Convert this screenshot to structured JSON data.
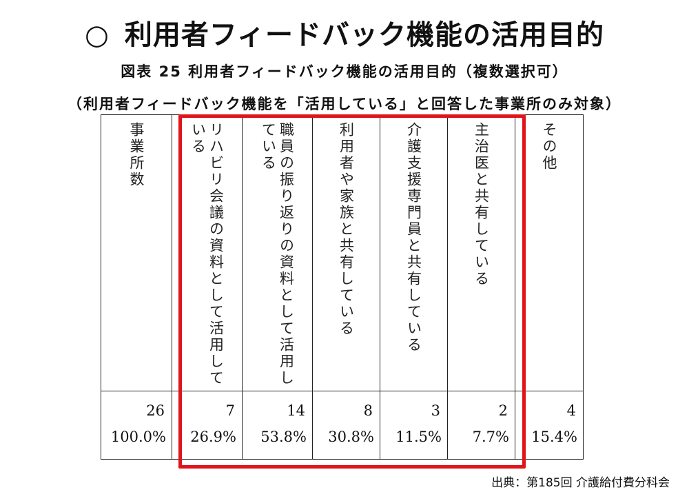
{
  "slide": {
    "circle": "○",
    "title": "利用者フィードバック機能の活用目的"
  },
  "figure": {
    "title": "図表 25 利用者フィードバック機能の活用目的（複数選択可）",
    "note": "（利用者フィードバック機能を「活用している」と回答した事業所のみ対象）"
  },
  "table": {
    "columns": [
      {
        "header": "事業所数",
        "count": "26",
        "percent": "100.0%"
      },
      {
        "header": "リハビリ会議の資料として活用している",
        "count": "7",
        "percent": "26.9%"
      },
      {
        "header": "職員の振り返りの資料として活用している",
        "count": "14",
        "percent": "53.8%"
      },
      {
        "header": "利用者や家族と共有している",
        "count": "8",
        "percent": "30.8%"
      },
      {
        "header": "介護支援専門員と共有している",
        "count": "3",
        "percent": "11.5%"
      },
      {
        "header": "主治医と共有している",
        "count": "2",
        "percent": "7.7%"
      },
      {
        "header": "その他",
        "count": "4",
        "percent": "15.4%"
      }
    ],
    "highlight_color": "#e0151b"
  },
  "source": "出典：第185回 介護給付費分科会"
}
